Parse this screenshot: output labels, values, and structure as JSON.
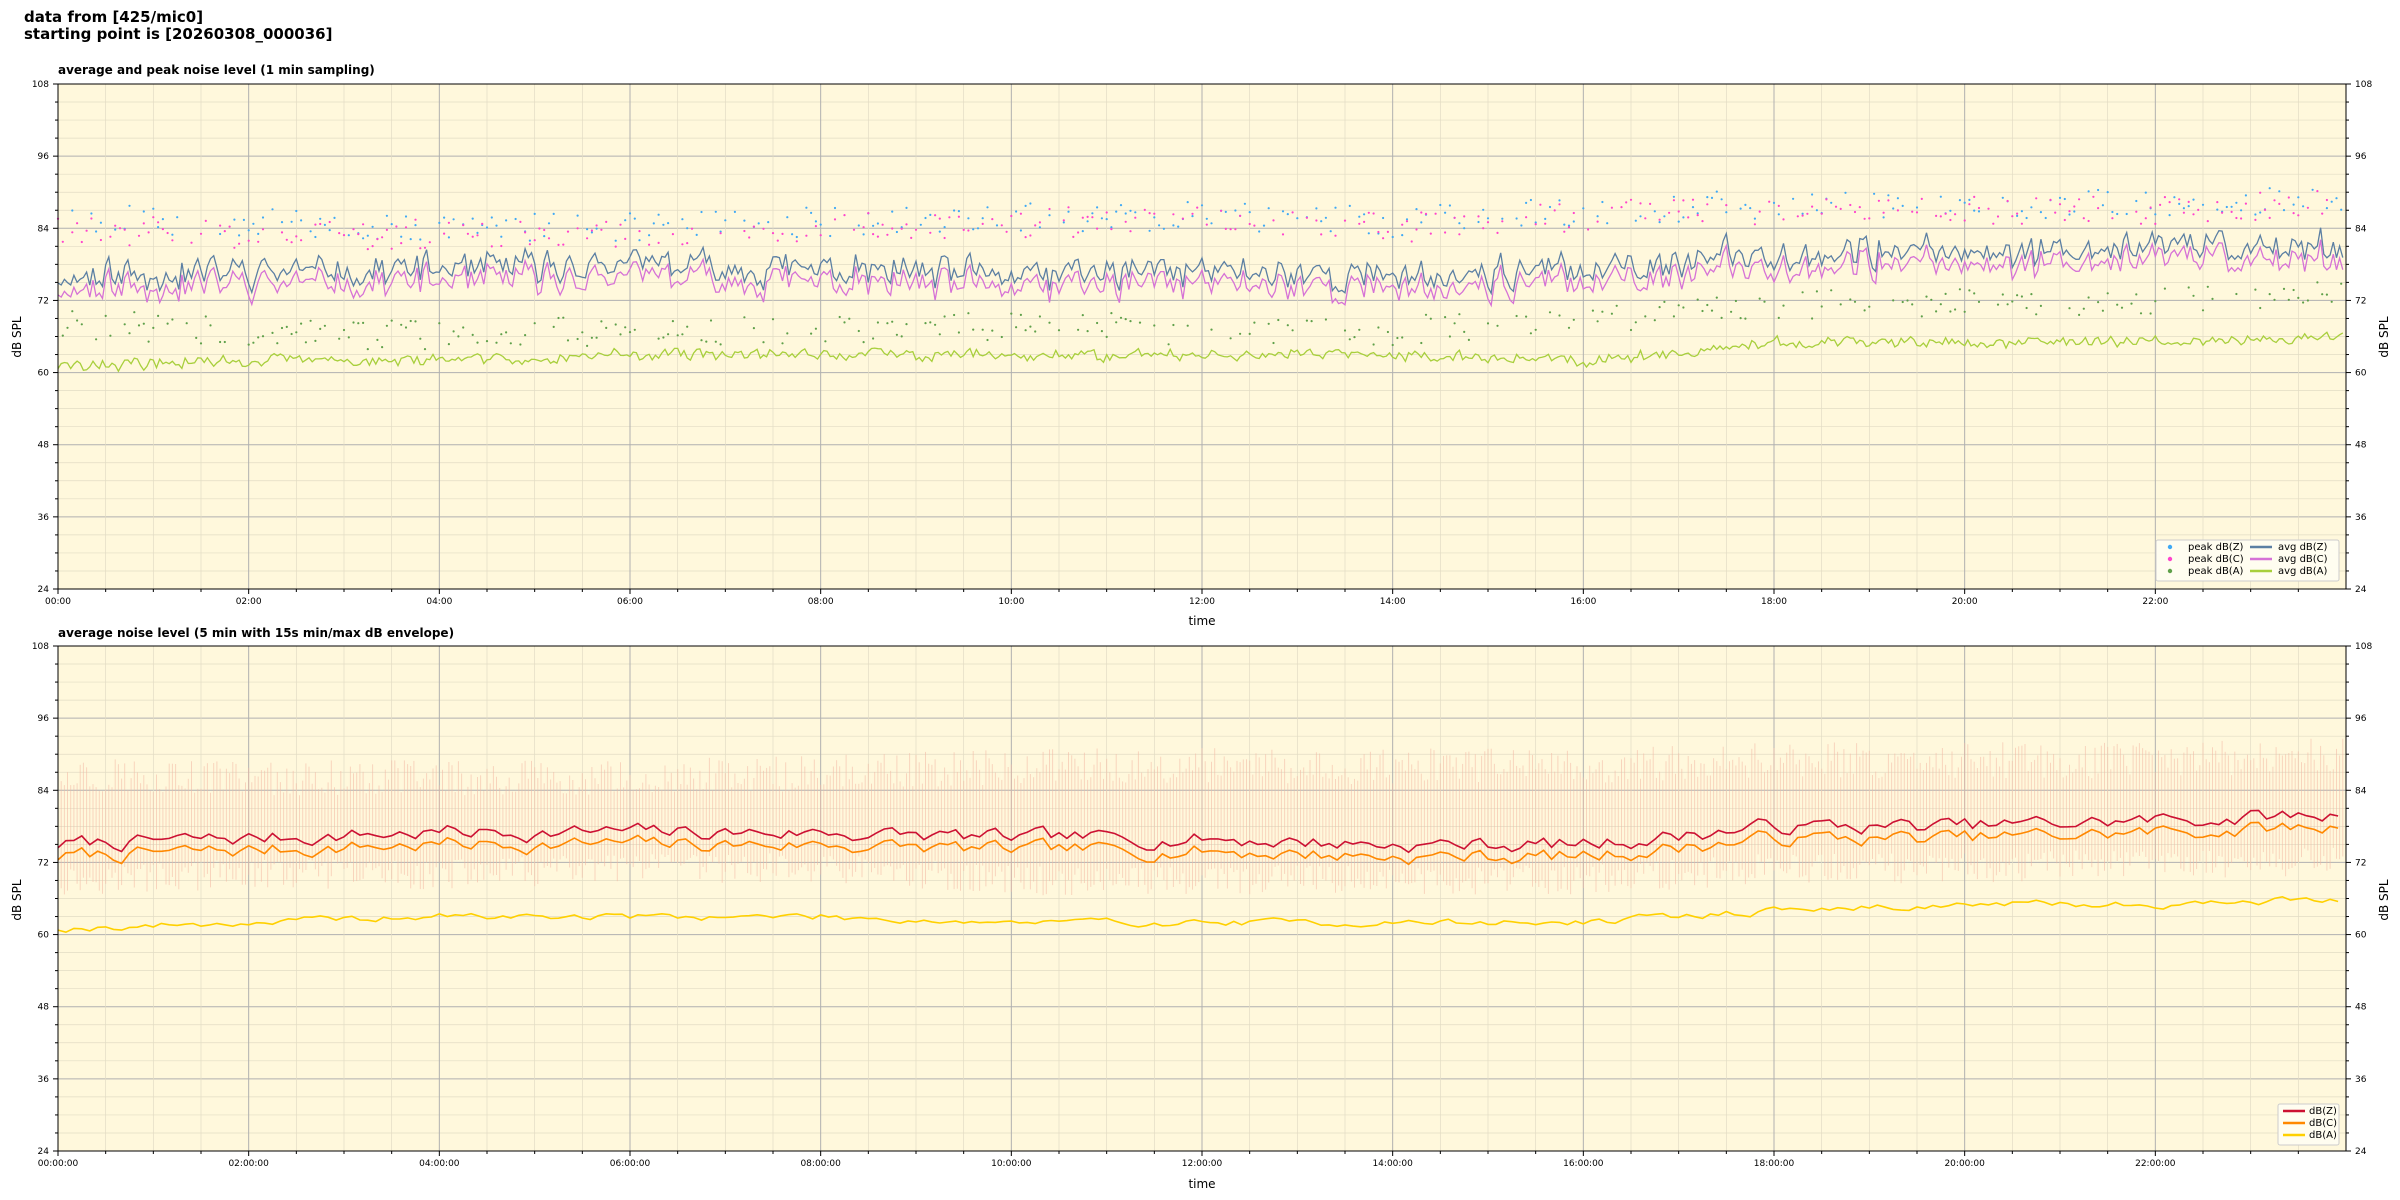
{
  "header": {
    "line1": "data from [425/mic0]",
    "line2": "starting point is [20260308_000036]"
  },
  "colors": {
    "plot_bg": "#fff8dc",
    "peak_z": "#3fa9f5",
    "peak_c": "#ff44cc",
    "peak_a": "#5fa04a",
    "avg_z": "#5b7fa3",
    "avg_c": "#d672d6",
    "avg_a": "#a8cf3c",
    "db_z": "#cc1133",
    "db_c": "#ff8800",
    "db_a": "#ffd000",
    "envelope": "#f4b8a3"
  },
  "chart_data": [
    {
      "type": "line",
      "title": "average and peak noise level (1 min sampling)",
      "xlabel": "time",
      "ylabel": "dB SPL",
      "xlim": [
        "00:00",
        "24:00"
      ],
      "ylim": [
        24,
        108
      ],
      "yticks": [
        24,
        36,
        48,
        60,
        72,
        84,
        96,
        108
      ],
      "xticks": [
        "00:00",
        "02:00",
        "04:00",
        "06:00",
        "08:00",
        "10:00",
        "12:00",
        "14:00",
        "16:00",
        "18:00",
        "20:00",
        "22:00"
      ],
      "grid": true,
      "legend_position": "bottom-right",
      "sampling": "1 min",
      "hours": [
        0,
        2,
        4,
        6,
        8,
        10,
        12,
        14,
        16,
        18,
        20,
        22,
        24
      ],
      "series": [
        {
          "name": "peak dB(Z)",
          "style": "points",
          "values": [
            86,
            85,
            84,
            84,
            85,
            86,
            86,
            85,
            87,
            88,
            88,
            88,
            89
          ]
        },
        {
          "name": "peak dB(C)",
          "style": "points",
          "values": [
            84,
            83,
            83,
            83,
            84,
            85,
            85,
            84,
            86,
            87,
            87,
            87,
            88
          ]
        },
        {
          "name": "peak dB(A)",
          "style": "points",
          "values": [
            68,
            67,
            66,
            67,
            67,
            68,
            67,
            67,
            69,
            71,
            72,
            72,
            74
          ]
        },
        {
          "name": "avg dB(Z)",
          "style": "line",
          "values": [
            76,
            77,
            77,
            78,
            77,
            76,
            77,
            76,
            77,
            80,
            80,
            81,
            81
          ]
        },
        {
          "name": "avg dB(C)",
          "style": "line",
          "values": [
            74,
            75,
            75,
            76,
            75,
            74,
            75,
            74,
            75,
            78,
            78,
            79,
            79
          ]
        },
        {
          "name": "avg dB(A)",
          "style": "line",
          "values": [
            61,
            62,
            62,
            63,
            63,
            63,
            63,
            63,
            62,
            65,
            65,
            65,
            66
          ]
        }
      ]
    },
    {
      "type": "line",
      "title": "average noise level (5 min with 15s min/max dB envelope)",
      "xlabel": "time",
      "ylabel": "dB SPL",
      "xlim": [
        "00:00:00",
        "24:00:00"
      ],
      "ylim": [
        24,
        108
      ],
      "yticks": [
        24,
        36,
        48,
        60,
        72,
        84,
        96,
        108
      ],
      "xticks": [
        "00:00:00",
        "02:00:00",
        "04:00:00",
        "06:00:00",
        "08:00:00",
        "10:00:00",
        "12:00:00",
        "14:00:00",
        "16:00:00",
        "18:00:00",
        "20:00:00",
        "22:00:00"
      ],
      "grid": true,
      "legend_position": "bottom-right",
      "sampling": "5 min",
      "hours": [
        0,
        2,
        4,
        6,
        8,
        10,
        12,
        14,
        16,
        18,
        20,
        22,
        24
      ],
      "series": [
        {
          "name": "dB(Z)",
          "style": "line",
          "values": [
            75,
            76,
            77,
            77,
            77,
            76,
            76,
            75,
            75,
            78,
            78,
            79,
            80
          ]
        },
        {
          "name": "dB(C)",
          "style": "line",
          "values": [
            73,
            74,
            75,
            75,
            75,
            74,
            74,
            73,
            73,
            76,
            76,
            77,
            78
          ]
        },
        {
          "name": "dB(A)",
          "style": "line",
          "values": [
            61,
            62,
            63,
            63,
            63,
            62,
            62,
            62,
            62,
            64,
            65,
            65,
            66
          ]
        }
      ],
      "envelope": {
        "min": [
          69,
          70,
          70,
          71,
          71,
          69,
          69,
          69,
          69,
          71,
          71,
          72,
          72
        ],
        "max": [
          87,
          86,
          86,
          86,
          87,
          88,
          88,
          88,
          88,
          89,
          89,
          89,
          90
        ]
      }
    }
  ]
}
